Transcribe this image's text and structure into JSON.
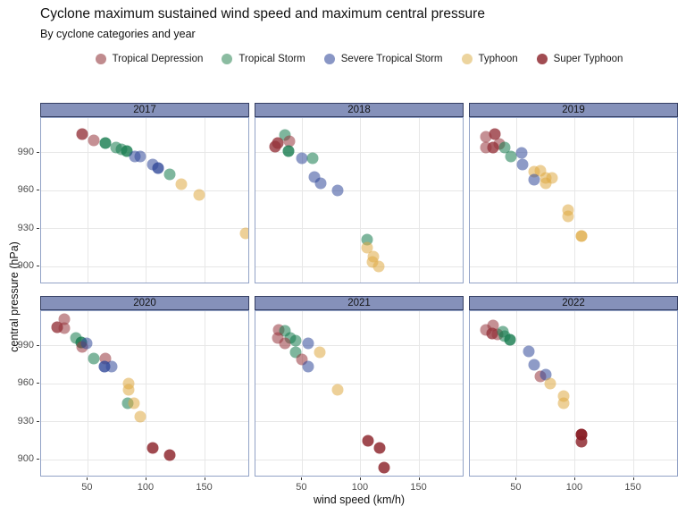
{
  "chart_data": {
    "type": "scatter",
    "title": "Cyclone maximum sustained wind speed and maximum central pressure",
    "subtitle": "By cyclone categories and year",
    "xlabel": "wind speed (km/h)",
    "ylabel": "central pressure (hPa)",
    "x_ticks": [
      50,
      100,
      150
    ],
    "y_ticks": [
      990,
      960,
      930,
      900
    ],
    "x_domain": [
      10,
      188.5
    ],
    "y_domain": [
      886,
      1017.5
    ],
    "grid": true,
    "legend_position": "top",
    "colors": {
      "strip_fill": "#8591ba",
      "strip_border": "#353f63",
      "panel_border": "#92a2c6",
      "gridline": "#e7e7e7",
      "tick_text": "#4d4d4d"
    },
    "categories": [
      {
        "id": "td",
        "label": "Tropical Depression",
        "legend_color": "#c08b8e",
        "fill": "rgba(150,53,60,0.55)"
      },
      {
        "id": "ts",
        "label": "Tropical Storm",
        "legend_color": "#8bbca1",
        "fill": "rgba(20,122,77,0.55)"
      },
      {
        "id": "sts",
        "label": "Severe Tropical Storm",
        "legend_color": "#8996c5",
        "fill": "rgba(49,73,153,0.55)"
      },
      {
        "id": "ty",
        "label": "Typhoon",
        "legend_color": "#ecd49e",
        "fill": "rgba(222,169,68,0.55)"
      },
      {
        "id": "sty",
        "label": "Super Typhoon",
        "legend_color": "#a14c52",
        "fill": "rgba(136,29,36,0.8)"
      }
    ],
    "facets": [
      {
        "year": "2017",
        "points": [
          [
            45,
            1005,
            "td",
            2
          ],
          [
            55,
            1000,
            "td",
            1
          ],
          [
            65,
            998,
            "ts",
            2
          ],
          [
            74,
            994,
            "ts",
            1
          ],
          [
            79,
            993,
            "ts",
            1
          ],
          [
            83,
            991,
            "ts",
            2
          ],
          [
            90,
            987,
            "sts",
            1
          ],
          [
            95,
            987,
            "sts",
            1
          ],
          [
            105,
            981,
            "sts",
            1
          ],
          [
            110,
            978,
            "sts",
            2
          ],
          [
            120,
            973,
            "ts",
            1
          ],
          [
            130,
            965,
            "ty",
            1
          ],
          [
            145,
            957,
            "ty",
            1
          ],
          [
            185,
            926,
            "ty",
            1
          ]
        ]
      },
      {
        "year": "2018",
        "points": [
          [
            35,
            1004,
            "ts",
            1
          ],
          [
            39,
            999,
            "td",
            1
          ],
          [
            29,
            998,
            "td",
            2
          ],
          [
            27,
            995,
            "td",
            2
          ],
          [
            38,
            991,
            "ts",
            2
          ],
          [
            50,
            986,
            "sts",
            1
          ],
          [
            59,
            986,
            "ts",
            1
          ],
          [
            60,
            971,
            "sts",
            1
          ],
          [
            66,
            966,
            "sts",
            1
          ],
          [
            80,
            960,
            "sts",
            1
          ],
          [
            105,
            921,
            "ts",
            1
          ],
          [
            105,
            915,
            "ty",
            1
          ],
          [
            111,
            908,
            "ty",
            1
          ],
          [
            110,
            904,
            "ty",
            1
          ],
          [
            115,
            900,
            "ty",
            1
          ]
        ]
      },
      {
        "year": "2019",
        "points": [
          [
            24,
            1003,
            "td",
            1
          ],
          [
            31,
            1005,
            "td",
            2
          ],
          [
            24,
            994,
            "td",
            1
          ],
          [
            30,
            994,
            "td",
            2
          ],
          [
            35,
            997,
            "td",
            1
          ],
          [
            40,
            994,
            "ts",
            1
          ],
          [
            45,
            987,
            "ts",
            1
          ],
          [
            54,
            990,
            "sts",
            1
          ],
          [
            55,
            981,
            "sts",
            1
          ],
          [
            65,
            975,
            "ty",
            1
          ],
          [
            70,
            976,
            "ty",
            1
          ],
          [
            65,
            969,
            "sts",
            1
          ],
          [
            75,
            970,
            "ty",
            1
          ],
          [
            80,
            970,
            "ty",
            1
          ],
          [
            75,
            966,
            "ty",
            1
          ],
          [
            94,
            945,
            "ty",
            1
          ],
          [
            94,
            940,
            "ty",
            1
          ],
          [
            105,
            924,
            "ty",
            2
          ]
        ]
      },
      {
        "year": "2020",
        "points": [
          [
            30,
            1011,
            "td",
            1
          ],
          [
            24,
            1005,
            "td",
            2
          ],
          [
            30,
            1004,
            "td",
            1
          ],
          [
            40,
            996,
            "ts",
            1
          ],
          [
            44,
            993,
            "ts",
            2
          ],
          [
            45,
            989,
            "td",
            1
          ],
          [
            49,
            992,
            "sts",
            1
          ],
          [
            55,
            980,
            "ts",
            1
          ],
          [
            65,
            980,
            "td",
            1
          ],
          [
            64,
            974,
            "sts",
            2
          ],
          [
            70,
            974,
            "sts",
            1
          ],
          [
            85,
            960,
            "ty",
            1
          ],
          [
            85,
            955,
            "ty",
            1
          ],
          [
            84,
            945,
            "ts",
            1
          ],
          [
            89,
            945,
            "ty",
            1
          ],
          [
            95,
            934,
            "ty",
            1
          ],
          [
            105,
            909,
            "sty",
            1
          ],
          [
            120,
            904,
            "sty",
            1
          ]
        ]
      },
      {
        "year": "2021",
        "points": [
          [
            30,
            1003,
            "td",
            1
          ],
          [
            35,
            1002,
            "ts",
            1
          ],
          [
            29,
            996,
            "td",
            1
          ],
          [
            40,
            996,
            "ts",
            1
          ],
          [
            35,
            992,
            "td",
            1
          ],
          [
            44,
            994,
            "ts",
            1
          ],
          [
            55,
            992,
            "sts",
            1
          ],
          [
            44,
            985,
            "ts",
            1
          ],
          [
            65,
            985,
            "ty",
            1
          ],
          [
            50,
            979,
            "td",
            1
          ],
          [
            55,
            974,
            "sts",
            1
          ],
          [
            80,
            955,
            "ty",
            1
          ],
          [
            106,
            915,
            "sty",
            1
          ],
          [
            116,
            909,
            "sty",
            1
          ],
          [
            120,
            894,
            "sty",
            1
          ]
        ]
      },
      {
        "year": "2022",
        "points": [
          [
            30,
            1006,
            "td",
            1
          ],
          [
            24,
            1003,
            "td",
            1
          ],
          [
            29,
            1000,
            "td",
            2
          ],
          [
            34,
            999,
            "td",
            1
          ],
          [
            38,
            1001,
            "ts",
            1
          ],
          [
            40,
            998,
            "ts",
            1
          ],
          [
            44,
            995,
            "ts",
            2
          ],
          [
            60,
            986,
            "sts",
            1
          ],
          [
            65,
            975,
            "sts",
            1
          ],
          [
            70,
            966,
            "td",
            1
          ],
          [
            75,
            967,
            "sts",
            1
          ],
          [
            79,
            960,
            "ty",
            1
          ],
          [
            90,
            950,
            "ty",
            1
          ],
          [
            90,
            945,
            "ty",
            1
          ],
          [
            105,
            920,
            "sty",
            2
          ],
          [
            105,
            914,
            "sty",
            1
          ]
        ]
      }
    ]
  }
}
